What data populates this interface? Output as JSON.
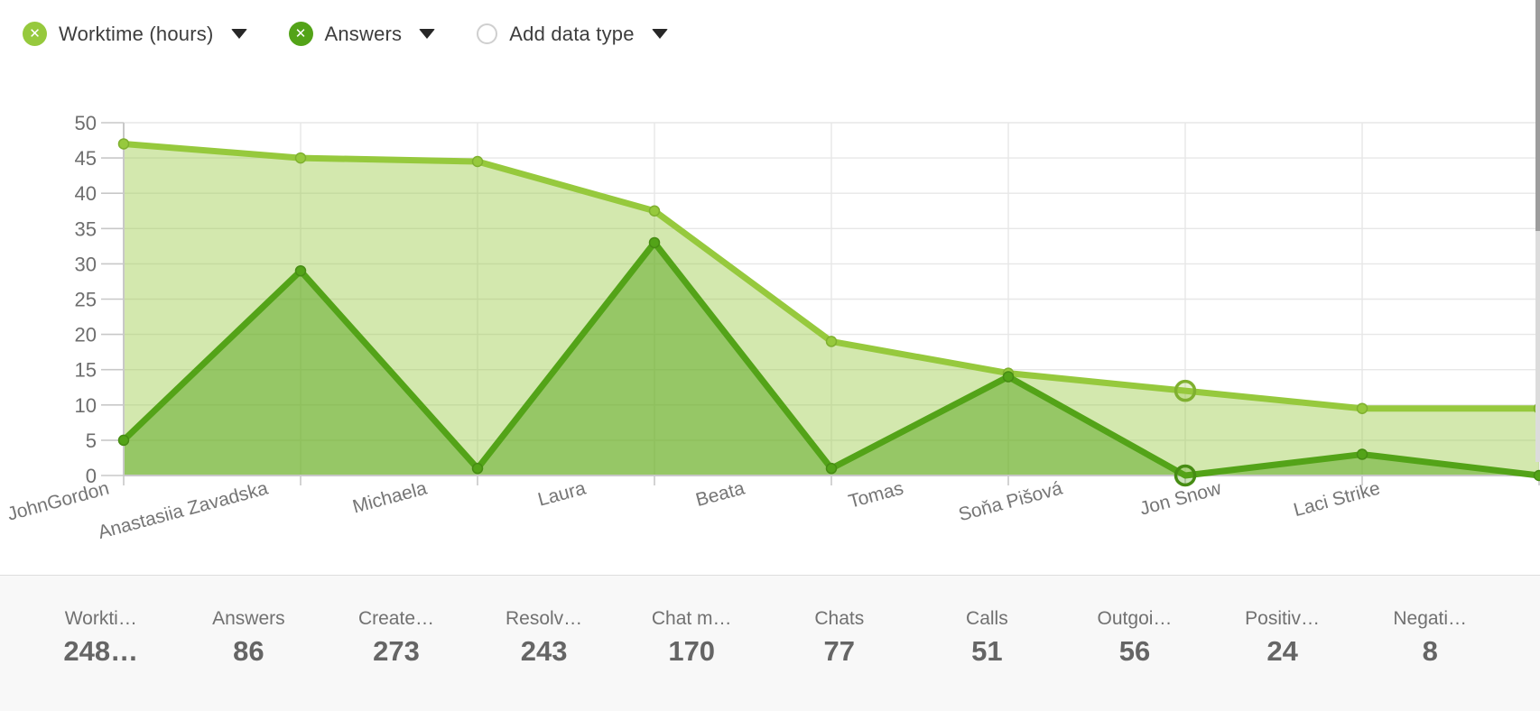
{
  "legend": {
    "series": [
      {
        "label": "Worktime (hours)",
        "color": "#96c93d"
      },
      {
        "label": "Answers",
        "color": "#53a318"
      }
    ],
    "add_label": "Add data type"
  },
  "chart_data": {
    "type": "area",
    "title": "",
    "xlabel": "",
    "ylabel": "",
    "categories": [
      "JohnGordon",
      "Anastasiia Zavadska",
      "Michaela",
      "Laura",
      "Beata",
      "Tomas",
      "Soňa Pišová",
      "Jon Snow",
      "Laci Strike"
    ],
    "series": [
      {
        "name": "Worktime (hours)",
        "values": [
          47,
          45,
          44.5,
          37.5,
          19,
          14.5,
          12,
          9.5,
          9.5
        ],
        "color": "#96c93d",
        "fill": "rgba(150,201,61,0.42)",
        "marker_stroke": "#7fb02f",
        "highlight_fill": "rgba(150,201,61,0.25)",
        "highlight_index": 6
      },
      {
        "name": "Answers",
        "values": [
          5,
          29,
          1,
          33,
          1,
          14,
          0,
          3,
          0
        ],
        "color": "#53a318",
        "fill": "rgba(83,163,24,0.48)",
        "marker_stroke": "#468c13",
        "highlight_fill": "rgba(83,163,24,0.3)",
        "highlight_index": 6
      }
    ],
    "ylim": [
      0,
      50
    ],
    "ytick_step": 5,
    "grid": true,
    "legend_position": "top"
  },
  "stats": {
    "items": [
      {
        "label": "Workti…",
        "value": "248…"
      },
      {
        "label": "Answers",
        "value": "86"
      },
      {
        "label": "Create…",
        "value": "273"
      },
      {
        "label": "Resolv…",
        "value": "243"
      },
      {
        "label": "Chat m…",
        "value": "170"
      },
      {
        "label": "Chats",
        "value": "77"
      },
      {
        "label": "Calls",
        "value": "51"
      },
      {
        "label": "Outgoi…",
        "value": "56"
      },
      {
        "label": "Positiv…",
        "value": "24"
      },
      {
        "label": "Negati…",
        "value": "8"
      }
    ]
  }
}
